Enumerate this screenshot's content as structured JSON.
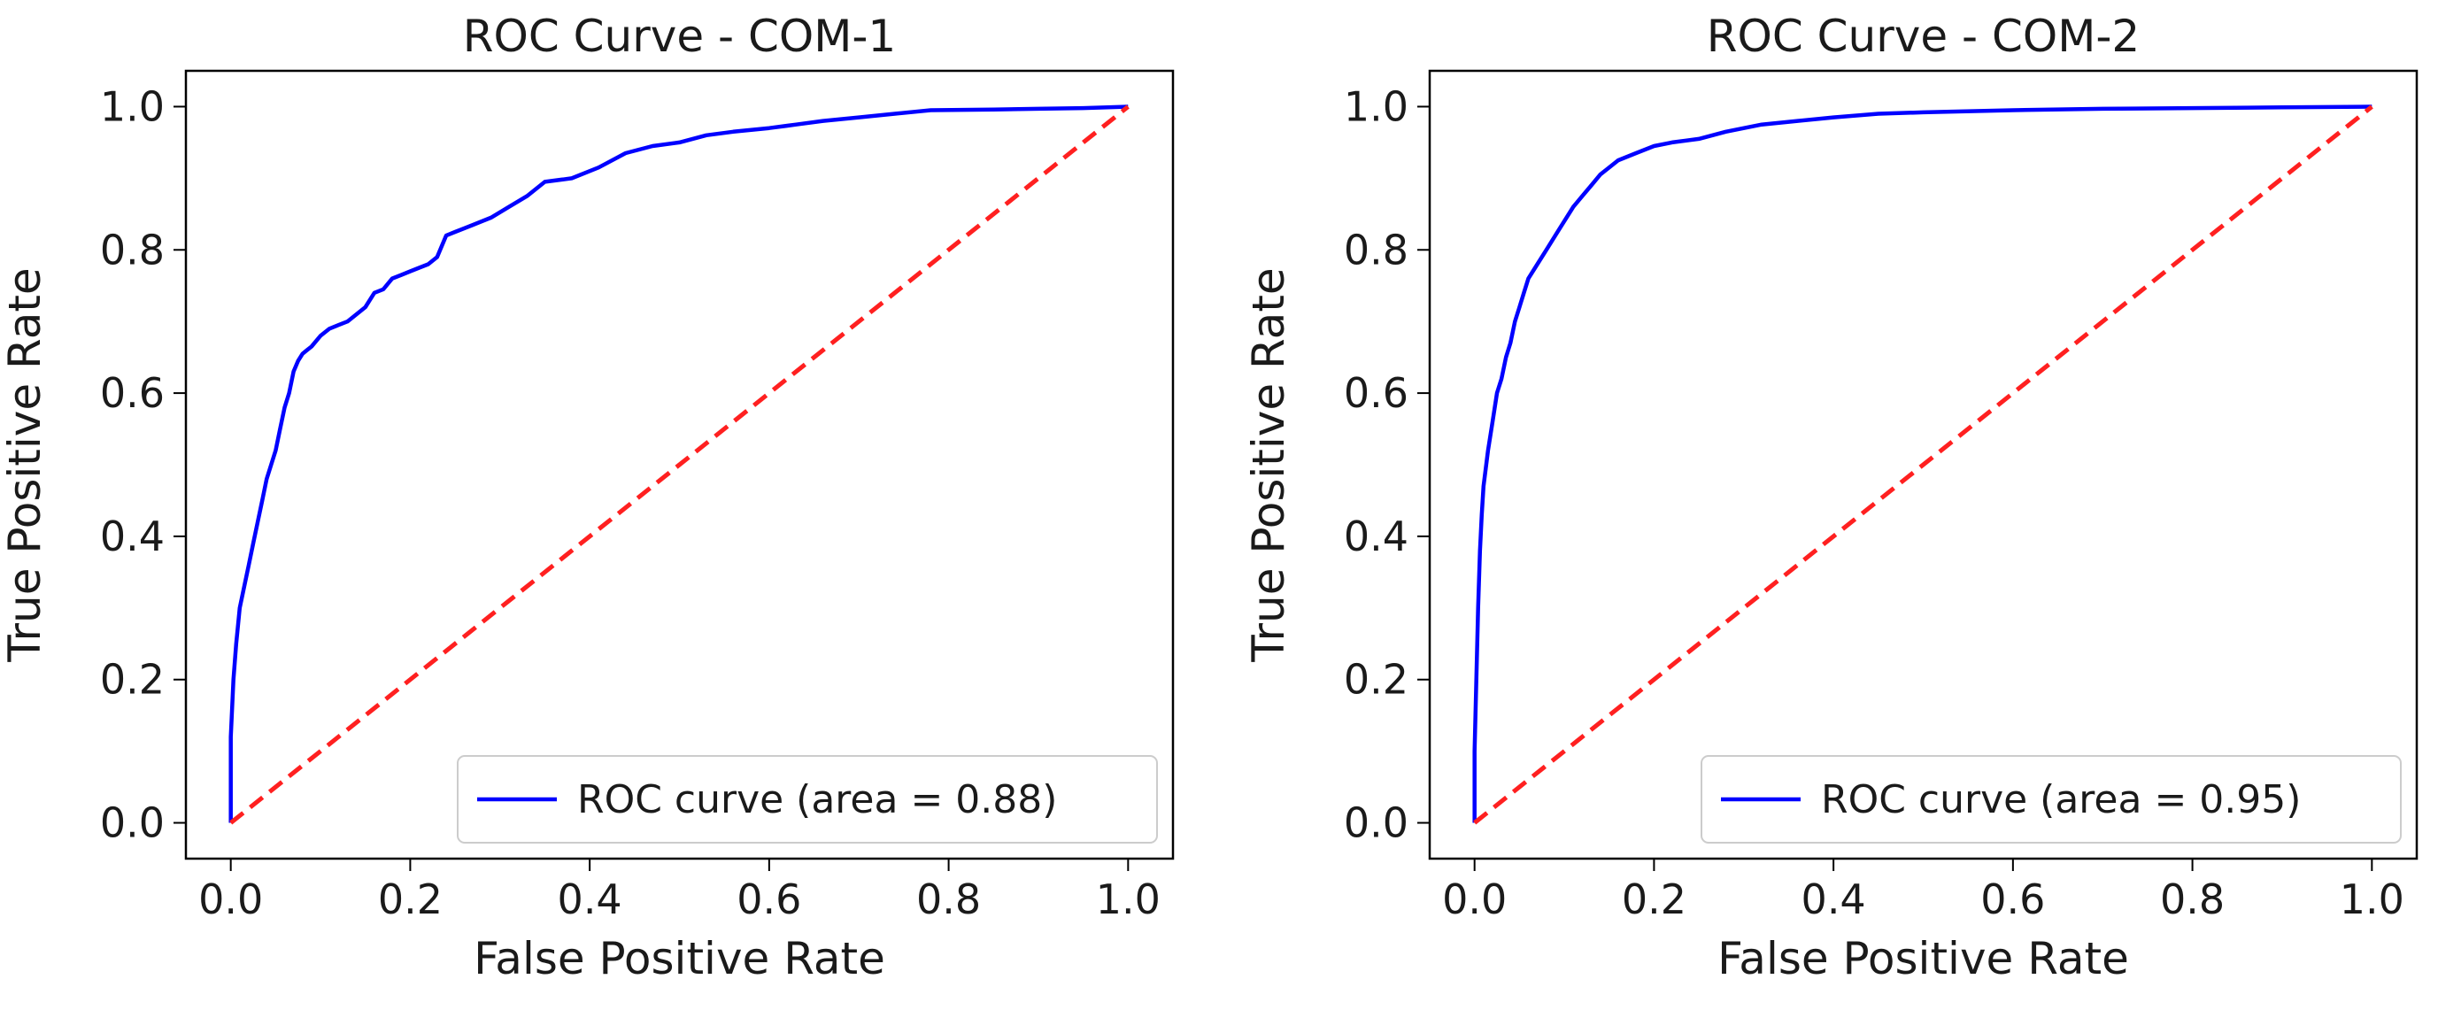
{
  "chart_data": [
    {
      "type": "line",
      "title": "ROC Curve - COM-1",
      "xlabel": "False Positive Rate",
      "ylabel": "True Positive Rate",
      "xlim": [
        -0.05,
        1.05
      ],
      "ylim": [
        -0.05,
        1.05
      ],
      "xticks": [
        "0.0",
        "0.2",
        "0.4",
        "0.6",
        "0.8",
        "1.0"
      ],
      "yticks": [
        "0.0",
        "0.2",
        "0.4",
        "0.6",
        "0.8",
        "1.0"
      ],
      "legend_position": "lower-right",
      "series": [
        {
          "name": "ROC curve (area = 0.88)",
          "color": "#0000ff",
          "style": "solid",
          "x": [
            0.0,
            0.0,
            0.003,
            0.006,
            0.01,
            0.015,
            0.02,
            0.025,
            0.03,
            0.035,
            0.04,
            0.045,
            0.05,
            0.055,
            0.06,
            0.065,
            0.07,
            0.075,
            0.08,
            0.085,
            0.09,
            0.1,
            0.11,
            0.12,
            0.13,
            0.14,
            0.15,
            0.16,
            0.17,
            0.18,
            0.19,
            0.2,
            0.21,
            0.22,
            0.23,
            0.24,
            0.25,
            0.27,
            0.29,
            0.31,
            0.33,
            0.35,
            0.38,
            0.41,
            0.44,
            0.47,
            0.5,
            0.53,
            0.56,
            0.6,
            0.63,
            0.66,
            0.7,
            0.74,
            0.78,
            0.85,
            0.9,
            0.95,
            1.0
          ],
          "y": [
            0.0,
            0.12,
            0.2,
            0.25,
            0.3,
            0.33,
            0.36,
            0.39,
            0.42,
            0.45,
            0.48,
            0.5,
            0.52,
            0.55,
            0.58,
            0.6,
            0.63,
            0.645,
            0.655,
            0.66,
            0.665,
            0.68,
            0.69,
            0.695,
            0.7,
            0.71,
            0.72,
            0.74,
            0.745,
            0.76,
            0.765,
            0.77,
            0.775,
            0.78,
            0.79,
            0.82,
            0.825,
            0.835,
            0.845,
            0.86,
            0.875,
            0.895,
            0.9,
            0.915,
            0.935,
            0.945,
            0.95,
            0.96,
            0.965,
            0.97,
            0.975,
            0.98,
            0.985,
            0.99,
            0.995,
            0.996,
            0.997,
            0.998,
            1.0
          ]
        },
        {
          "name": "",
          "color": "#ff2020",
          "style": "dashed",
          "x": [
            0.0,
            1.0
          ],
          "y": [
            0.0,
            1.0
          ]
        }
      ]
    },
    {
      "type": "line",
      "title": "ROC Curve - COM-2",
      "xlabel": "False Positive Rate",
      "ylabel": "True Positive Rate",
      "xlim": [
        -0.05,
        1.05
      ],
      "ylim": [
        -0.05,
        1.05
      ],
      "xticks": [
        "0.0",
        "0.2",
        "0.4",
        "0.6",
        "0.8",
        "1.0"
      ],
      "yticks": [
        "0.0",
        "0.2",
        "0.4",
        "0.6",
        "0.8",
        "1.0"
      ],
      "legend_position": "lower-right",
      "series": [
        {
          "name": "ROC curve (area = 0.95)",
          "color": "#0000ff",
          "style": "solid",
          "x": [
            0.0,
            0.0,
            0.002,
            0.004,
            0.006,
            0.008,
            0.01,
            0.015,
            0.02,
            0.025,
            0.03,
            0.035,
            0.04,
            0.045,
            0.05,
            0.055,
            0.06,
            0.07,
            0.08,
            0.09,
            0.1,
            0.11,
            0.12,
            0.13,
            0.14,
            0.15,
            0.16,
            0.18,
            0.2,
            0.22,
            0.25,
            0.28,
            0.32,
            0.36,
            0.4,
            0.45,
            0.5,
            0.6,
            0.7,
            0.8,
            0.9,
            1.0
          ],
          "y": [
            0.0,
            0.1,
            0.2,
            0.3,
            0.38,
            0.43,
            0.47,
            0.52,
            0.56,
            0.6,
            0.62,
            0.65,
            0.67,
            0.7,
            0.72,
            0.74,
            0.76,
            0.78,
            0.8,
            0.82,
            0.84,
            0.86,
            0.875,
            0.89,
            0.905,
            0.915,
            0.925,
            0.935,
            0.945,
            0.95,
            0.955,
            0.965,
            0.975,
            0.98,
            0.985,
            0.99,
            0.992,
            0.995,
            0.997,
            0.998,
            0.999,
            1.0
          ]
        },
        {
          "name": "",
          "color": "#ff2020",
          "style": "dashed",
          "x": [
            0.0,
            1.0
          ],
          "y": [
            0.0,
            1.0
          ]
        }
      ]
    }
  ]
}
